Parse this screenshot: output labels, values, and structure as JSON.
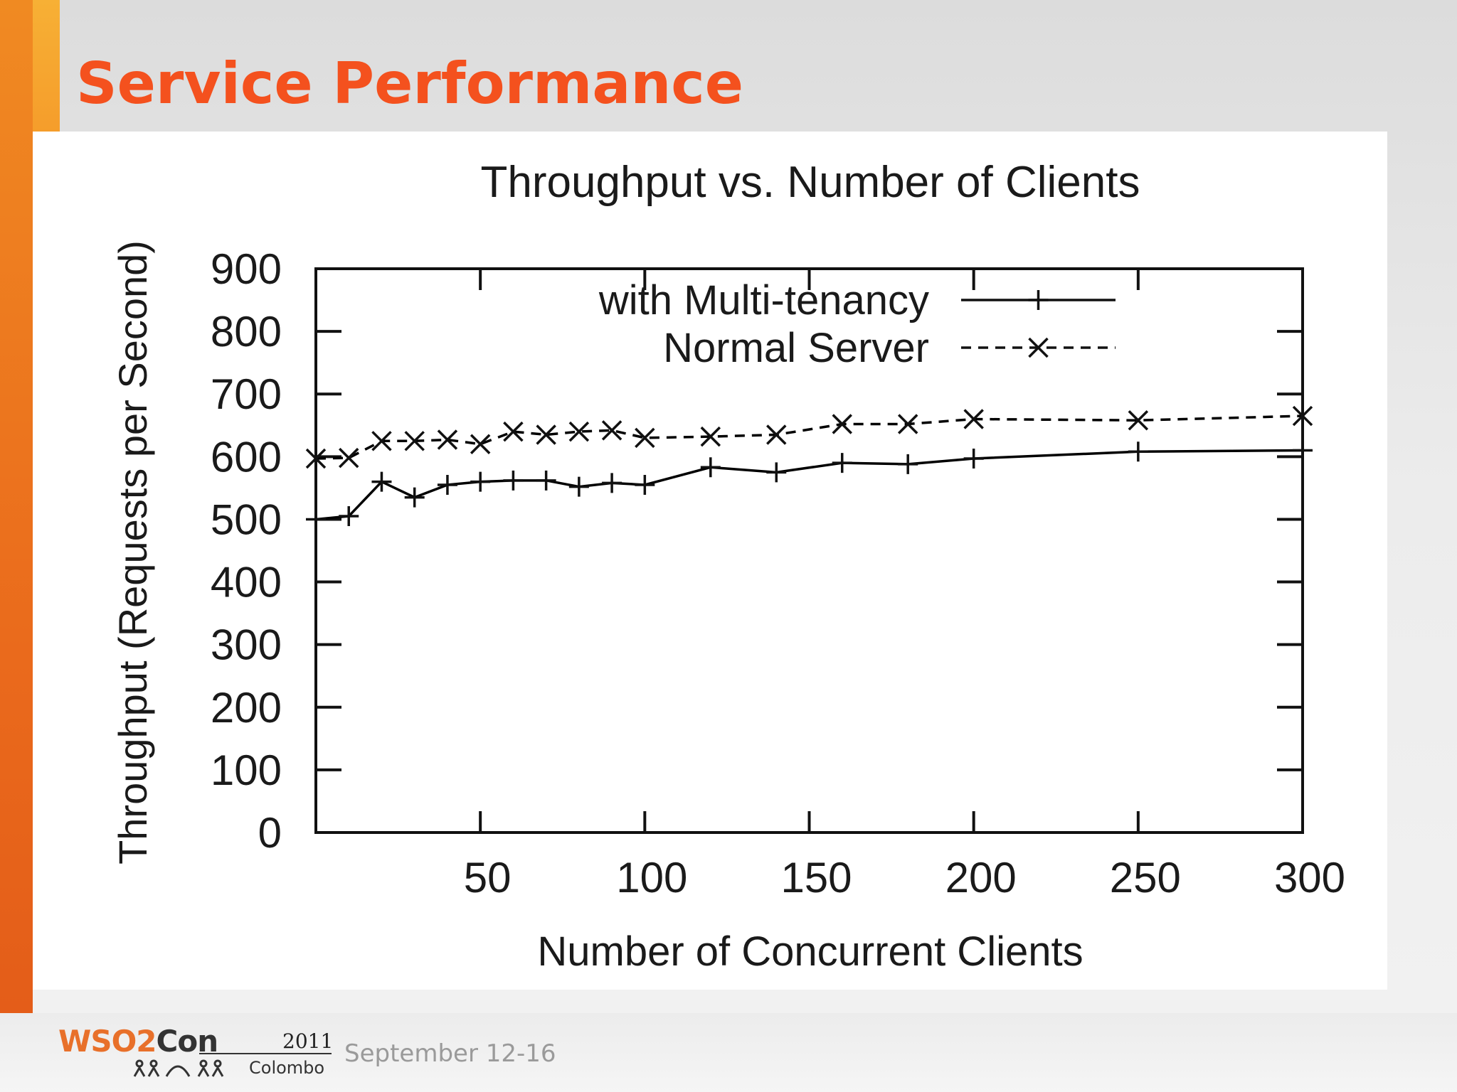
{
  "slide": {
    "title": "Service Performance",
    "colors": {
      "title": "#f4511e",
      "accent": "#f08a22"
    }
  },
  "footer": {
    "logo_wso2": "WSO2",
    "logo_con": "Con",
    "logo_year": "2011",
    "logo_city": "Colombo",
    "dates": "September 12-16"
  },
  "chart_data": {
    "type": "line",
    "title": "Throughput vs. Number of Clients",
    "xlabel": "Number of Concurrent Clients",
    "ylabel": "Throughput (Requests per Second)",
    "xlim": [
      0,
      300
    ],
    "ylim": [
      0,
      900
    ],
    "x_ticks": [
      50,
      100,
      150,
      200,
      250,
      300
    ],
    "y_ticks": [
      0,
      100,
      200,
      300,
      400,
      500,
      600,
      700,
      800,
      900
    ],
    "grid": false,
    "legend_position": "top-right",
    "series": [
      {
        "name": "with Multi-tenancy",
        "marker": "plus",
        "line": "solid",
        "color": "#000000",
        "x": [
          0,
          10,
          20,
          30,
          40,
          50,
          60,
          70,
          80,
          90,
          100,
          120,
          140,
          160,
          180,
          200,
          250,
          300
        ],
        "y": [
          500,
          505,
          560,
          535,
          555,
          560,
          562,
          562,
          552,
          558,
          555,
          583,
          575,
          590,
          588,
          597,
          608,
          610
        ]
      },
      {
        "name": "Normal Server",
        "marker": "cross",
        "line": "dashed",
        "color": "#000000",
        "x": [
          0,
          10,
          20,
          30,
          40,
          50,
          60,
          70,
          80,
          90,
          100,
          120,
          140,
          160,
          180,
          200,
          250,
          300
        ],
        "y": [
          597,
          598,
          625,
          625,
          627,
          620,
          640,
          635,
          640,
          642,
          630,
          632,
          635,
          652,
          652,
          660,
          658,
          665
        ]
      }
    ]
  }
}
